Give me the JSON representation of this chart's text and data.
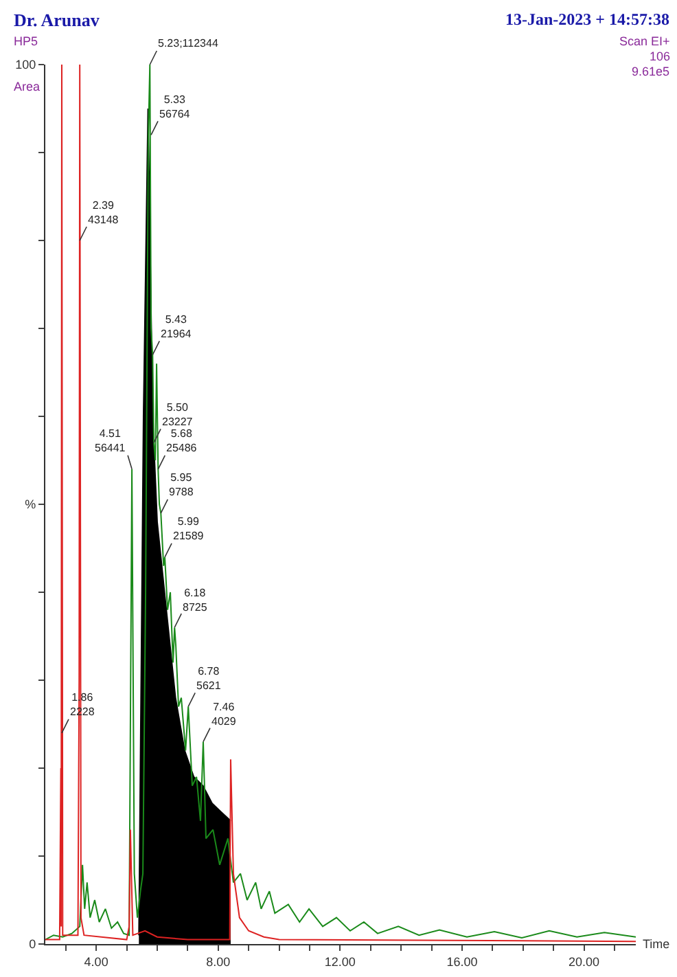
{
  "chart_data": {
    "type": "line",
    "title": "Dr. Arunav",
    "subtitle": "13-Jan-2023 + 14:57:38",
    "xlabel": "Time",
    "xlim": [
      2.33,
      21.7
    ],
    "xticks": [
      {
        "value": 3,
        "label": null
      },
      {
        "value": 4,
        "label": "4.00"
      },
      {
        "value": 5,
        "label": null
      },
      {
        "value": 6,
        "label": null
      },
      {
        "value": 7,
        "label": null
      },
      {
        "value": 8,
        "label": "8.00"
      },
      {
        "value": 9,
        "label": null
      },
      {
        "value": 10,
        "label": null
      },
      {
        "value": 11,
        "label": null
      },
      {
        "value": 12,
        "label": "12.00"
      },
      {
        "value": 13,
        "label": null
      },
      {
        "value": 14,
        "label": null
      },
      {
        "value": 15,
        "label": null
      },
      {
        "value": 16,
        "label": "16.00"
      },
      {
        "value": 17,
        "label": null
      },
      {
        "value": 18,
        "label": null
      },
      {
        "value": 19,
        "label": null
      },
      {
        "value": 20,
        "label": "20.00"
      },
      {
        "value": 21,
        "label": null
      }
    ],
    "ylim": [
      0,
      100
    ],
    "yticks": [
      0,
      {
        "value": 10,
        "label": null
      },
      {
        "value": 20,
        "label": null
      },
      {
        "value": 30,
        "label": null
      },
      {
        "value": 40,
        "label": null
      },
      {
        "value": 50,
        "label": "%"
      },
      {
        "value": 60,
        "label": null
      },
      {
        "value": 70,
        "label": null
      },
      {
        "value": 80,
        "label": null
      },
      {
        "value": 90,
        "label": null
      },
      100
    ],
    "grid": false,
    "legend": false,
    "marker": "none",
    "line_style": "solid",
    "series": [
      {
        "type": "area",
        "color": "#000000",
        "x": [
          5.4,
          5.55,
          5.7,
          5.85,
          6.0,
          6.3,
          6.6,
          6.9,
          7.2,
          7.5,
          7.8,
          8.1,
          8.41
        ],
        "values": [
          1.0,
          60,
          95,
          60,
          48,
          38,
          28,
          22,
          19,
          18,
          16,
          15,
          14
        ]
      },
      {
        "color": "#1a8a1a",
        "x": [
          2.33,
          2.6,
          2.9,
          3.2,
          3.46,
          3.55,
          3.62,
          3.7,
          3.8,
          3.95,
          4.1,
          4.3,
          4.5,
          4.7,
          4.9,
          5.08,
          5.17,
          5.25,
          5.35,
          5.45,
          5.53,
          5.62,
          5.71,
          5.76,
          5.8,
          5.85,
          5.89,
          5.94,
          5.98,
          6.03,
          6.07,
          6.12,
          6.21,
          6.25,
          6.34,
          6.43,
          6.52,
          6.57,
          6.61,
          6.7,
          6.79,
          6.93,
          7.02,
          7.15,
          7.29,
          7.42,
          7.51,
          7.6,
          7.83,
          8.05,
          8.32,
          8.5,
          8.73,
          8.95,
          9.23,
          9.41,
          9.68,
          9.86,
          10.3,
          10.67,
          10.98,
          11.43,
          11.88,
          12.33,
          12.78,
          13.23,
          13.91,
          14.59,
          15.26,
          16.16,
          17.06,
          17.96,
          18.86,
          19.77,
          20.67,
          21.7
        ],
        "values": [
          0.5,
          1,
          0.8,
          1.2,
          2,
          9,
          4,
          7,
          3,
          5,
          2.5,
          4,
          1.8,
          2.5,
          1.2,
          1,
          54,
          8,
          3,
          6,
          8,
          40,
          92,
          100,
          70,
          67,
          57,
          55,
          66,
          54,
          50,
          49,
          43,
          44,
          38,
          40,
          32,
          36,
          34,
          27,
          28,
          22,
          27,
          18,
          19,
          14,
          23,
          12,
          13,
          9,
          12,
          7,
          8,
          5,
          7,
          4,
          6,
          3.5,
          4.5,
          2.5,
          4,
          2,
          3,
          1.5,
          2.5,
          1.2,
          2,
          1,
          1.6,
          0.8,
          1.4,
          0.7,
          1.5,
          0.8,
          1.3,
          0.8
        ]
      },
      {
        "color": "#dd2222",
        "x": [
          2.33,
          2.8,
          2.84,
          2.85,
          2.87,
          2.9,
          3.4,
          3.44,
          3.46,
          3.5,
          3.6,
          5.0,
          5.08,
          5.12,
          5.2,
          5.6,
          6.0,
          7.0,
          8.38,
          8.41,
          8.5,
          8.7,
          9.0,
          9.5,
          10,
          21.7
        ],
        "values": [
          0.5,
          0.5,
          20,
          2,
          100,
          1,
          1,
          30,
          100,
          3,
          1,
          0.5,
          2,
          13,
          1,
          1.5,
          0.8,
          0.5,
          0.5,
          21,
          8,
          3,
          1.5,
          0.8,
          0.5,
          0.3
        ]
      }
    ],
    "annotations": [
      "HP5",
      "Area",
      "Scan EI+",
      "106",
      "9.61e5",
      {
        "text": "1.86\n2228",
        "x": 2.87,
        "y": 24
      },
      {
        "text": "2.39\n43148",
        "x": 3.46,
        "y": 80
      },
      {
        "text": "4.51\n56441",
        "x": 5.17,
        "y": 54
      },
      {
        "text": "5.23;112344",
        "x": 5.76,
        "y": 100
      },
      {
        "text": "5.33\n56764",
        "x": 5.8,
        "y": 92
      },
      {
        "text": "5.43\n21964",
        "x": 5.85,
        "y": 67
      },
      {
        "text": "5.50\n23227",
        "x": 5.89,
        "y": 57
      },
      {
        "text": "5.68\n25486",
        "x": 6.03,
        "y": 54
      },
      {
        "text": "5.95\n9788",
        "x": 6.12,
        "y": 49
      },
      {
        "text": "5.99\n21589",
        "x": 6.25,
        "y": 44
      },
      {
        "text": "6.18\n8725",
        "x": 6.57,
        "y": 36
      },
      {
        "text": "6.78\n5621",
        "x": 7.02,
        "y": 27
      },
      {
        "text": "7.46\n4029",
        "x": 7.51,
        "y": 23
      }
    ]
  }
}
